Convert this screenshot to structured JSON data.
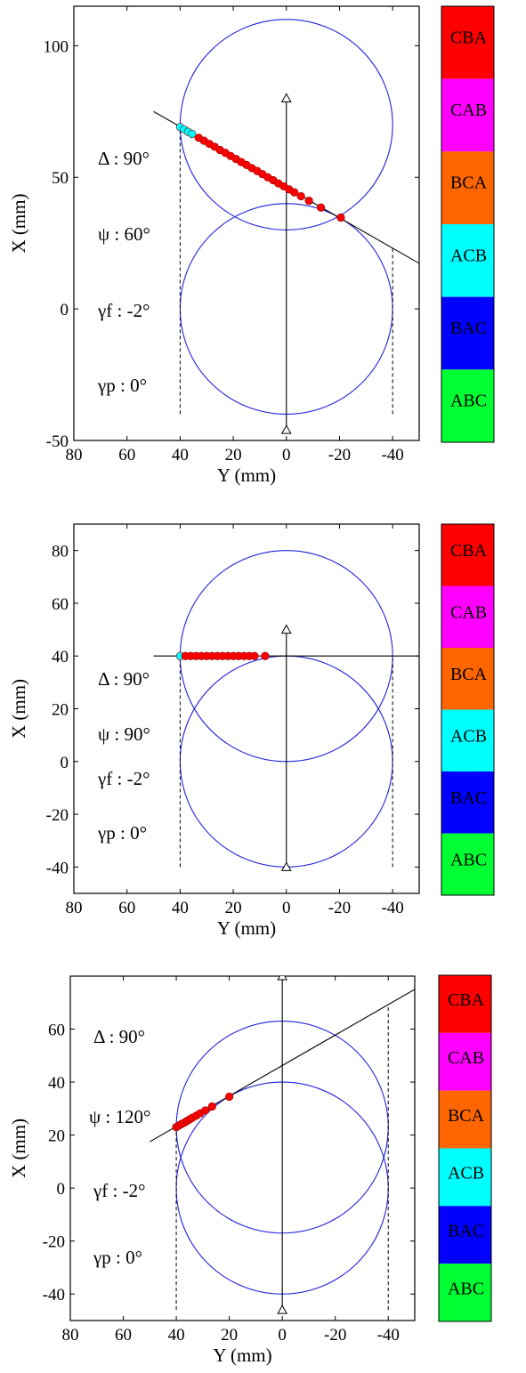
{
  "colors": {
    "circle": "#2222dd",
    "line": "#000000",
    "CBA": "#ff0000",
    "CAB": "#ff00ff",
    "BCA": "#ff6600",
    "ACB": "#00ffff",
    "BAC": "#0000ff",
    "ABC": "#00ff33"
  },
  "legend_categories": [
    "CBA",
    "CAB",
    "BCA",
    "ACB",
    "BAC",
    "ABC"
  ],
  "chart_data": [
    {
      "type": "scatter",
      "xlabel": "Y (mm)",
      "ylabel": "X (mm)",
      "xlim": [
        80,
        -50
      ],
      "ylim": [
        -50,
        115
      ],
      "xticks": [
        80,
        60,
        40,
        20,
        0,
        -20,
        -40
      ],
      "yticks": [
        100,
        50,
        0,
        -50
      ],
      "annotations": [
        "Δ : 90°",
        "ψ : 60°",
        "γf : -2°",
        "γp : 0°"
      ],
      "circles": [
        {
          "cx": 0,
          "cy": 70,
          "r": 40
        },
        {
          "cx": 0,
          "cy": 0,
          "r": 40
        }
      ],
      "fit_line": [
        [
          50,
          75
        ],
        [
          -50,
          17.3
        ]
      ],
      "vertical_axis": [
        [
          0,
          -46
        ],
        [
          0,
          80
        ]
      ],
      "dashed_lines": [
        [
          [
            40,
            -40
          ],
          [
            40,
            69
          ]
        ],
        [
          [
            -40,
            -40
          ],
          [
            -40,
            23
          ]
        ]
      ],
      "points": [
        {
          "y": 40,
          "x": 69.1,
          "c": "ACB"
        },
        {
          "y": 38.5,
          "x": 68.2,
          "c": "ACB"
        },
        {
          "y": 37,
          "x": 67.3,
          "c": "ACB"
        },
        {
          "y": 35.5,
          "x": 66.5,
          "c": "ACB"
        },
        {
          "y": 33,
          "x": 65,
          "c": "CBA"
        },
        {
          "y": 31,
          "x": 63.9,
          "c": "CBA"
        },
        {
          "y": 29,
          "x": 62.7,
          "c": "CBA"
        },
        {
          "y": 27,
          "x": 61.6,
          "c": "CBA"
        },
        {
          "y": 25,
          "x": 60.4,
          "c": "CBA"
        },
        {
          "y": 23,
          "x": 59.3,
          "c": "CBA"
        },
        {
          "y": 21,
          "x": 58.1,
          "c": "CBA"
        },
        {
          "y": 19,
          "x": 57,
          "c": "CBA"
        },
        {
          "y": 17,
          "x": 55.8,
          "c": "CBA"
        },
        {
          "y": 15,
          "x": 54.7,
          "c": "CBA"
        },
        {
          "y": 13,
          "x": 53.5,
          "c": "CBA"
        },
        {
          "y": 11,
          "x": 52.4,
          "c": "CBA"
        },
        {
          "y": 9,
          "x": 51.2,
          "c": "CBA"
        },
        {
          "y": 7,
          "x": 50,
          "c": "CBA"
        },
        {
          "y": 5,
          "x": 48.9,
          "c": "CBA"
        },
        {
          "y": 3,
          "x": 47.7,
          "c": "CBA"
        },
        {
          "y": 1,
          "x": 46.6,
          "c": "CBA"
        },
        {
          "y": -1,
          "x": 45.4,
          "c": "CBA"
        },
        {
          "y": -3,
          "x": 44.3,
          "c": "CBA"
        },
        {
          "y": -5.5,
          "x": 42.8,
          "c": "CBA"
        },
        {
          "y": -8.5,
          "x": 41.1,
          "c": "CBA"
        },
        {
          "y": -13,
          "x": 38.5,
          "c": "CBA"
        },
        {
          "y": -20.5,
          "x": 34.7,
          "c": "CBA"
        }
      ]
    },
    {
      "type": "scatter",
      "xlabel": "Y (mm)",
      "ylabel": "X (mm)",
      "xlim": [
        80,
        -50
      ],
      "ylim": [
        -50,
        90
      ],
      "xticks": [
        80,
        60,
        40,
        20,
        0,
        -20,
        -40
      ],
      "yticks": [
        80,
        60,
        40,
        20,
        0,
        -20,
        -40
      ],
      "annotations": [
        "Δ : 90°",
        "ψ : 90°",
        "γf : -2°",
        "γp : 0°"
      ],
      "circles": [
        {
          "cx": 0,
          "cy": 40,
          "r": 40
        },
        {
          "cx": 0,
          "cy": 0,
          "r": 40
        }
      ],
      "fit_line": [
        [
          50,
          40
        ],
        [
          -50,
          40
        ]
      ],
      "vertical_axis": [
        [
          0,
          -40
        ],
        [
          0,
          50
        ]
      ],
      "dashed_lines": [
        [
          [
            40,
            -40
          ],
          [
            40,
            40
          ]
        ],
        [
          [
            -40,
            -40
          ],
          [
            -40,
            40
          ]
        ]
      ],
      "points": [
        {
          "y": 40,
          "x": 40,
          "c": "ACB"
        },
        {
          "y": 38,
          "x": 40,
          "c": "CBA"
        },
        {
          "y": 36,
          "x": 40,
          "c": "CBA"
        },
        {
          "y": 34,
          "x": 40,
          "c": "CBA"
        },
        {
          "y": 32,
          "x": 40,
          "c": "CBA"
        },
        {
          "y": 30,
          "x": 40,
          "c": "CBA"
        },
        {
          "y": 28,
          "x": 40,
          "c": "CBA"
        },
        {
          "y": 26,
          "x": 40,
          "c": "CBA"
        },
        {
          "y": 24,
          "x": 40,
          "c": "CBA"
        },
        {
          "y": 22,
          "x": 40,
          "c": "CBA"
        },
        {
          "y": 20,
          "x": 40,
          "c": "CBA"
        },
        {
          "y": 18,
          "x": 40,
          "c": "CBA"
        },
        {
          "y": 16,
          "x": 40,
          "c": "CBA"
        },
        {
          "y": 14,
          "x": 40,
          "c": "CBA"
        },
        {
          "y": 12,
          "x": 40,
          "c": "CBA"
        },
        {
          "y": 8,
          "x": 40,
          "c": "CBA"
        }
      ]
    },
    {
      "type": "scatter",
      "xlabel": "Y (mm)",
      "ylabel": "X (mm)",
      "xlim": [
        80,
        -50
      ],
      "ylim": [
        -50,
        80
      ],
      "xticks": [
        80,
        60,
        40,
        20,
        0,
        -20,
        -40
      ],
      "yticks": [
        60,
        40,
        20,
        0,
        -20,
        -40
      ],
      "annotations": [
        "Δ : 90°",
        "ψ : 120°",
        "γf : -2°",
        "γp : 0°"
      ],
      "circles": [
        {
          "cx": 0,
          "cy": 23,
          "r": 40
        },
        {
          "cx": 0,
          "cy": 0,
          "r": 40
        }
      ],
      "fit_line": [
        [
          50,
          17.5
        ],
        [
          -50,
          75
        ]
      ],
      "vertical_axis": [
        [
          0,
          -46
        ],
        [
          0,
          80
        ]
      ],
      "dashed_lines": [
        [
          [
            40,
            -46
          ],
          [
            40,
            23
          ]
        ],
        [
          [
            -40,
            -46
          ],
          [
            -40,
            69
          ]
        ]
      ],
      "points": [
        {
          "y": 40,
          "x": 23,
          "c": "CBA"
        },
        {
          "y": 39,
          "x": 23.6,
          "c": "CBA"
        },
        {
          "y": 38,
          "x": 24.2,
          "c": "CBA"
        },
        {
          "y": 37,
          "x": 24.7,
          "c": "CBA"
        },
        {
          "y": 36,
          "x": 25.3,
          "c": "CBA"
        },
        {
          "y": 35,
          "x": 25.9,
          "c": "CBA"
        },
        {
          "y": 34,
          "x": 26.5,
          "c": "CBA"
        },
        {
          "y": 32.5,
          "x": 27.3,
          "c": "CBA"
        },
        {
          "y": 31,
          "x": 28.2,
          "c": "CBA"
        },
        {
          "y": 29,
          "x": 29.3,
          "c": "CBA"
        },
        {
          "y": 26.5,
          "x": 30.8,
          "c": "CBA"
        },
        {
          "y": 20,
          "x": 34.5,
          "c": "CBA"
        }
      ]
    }
  ]
}
